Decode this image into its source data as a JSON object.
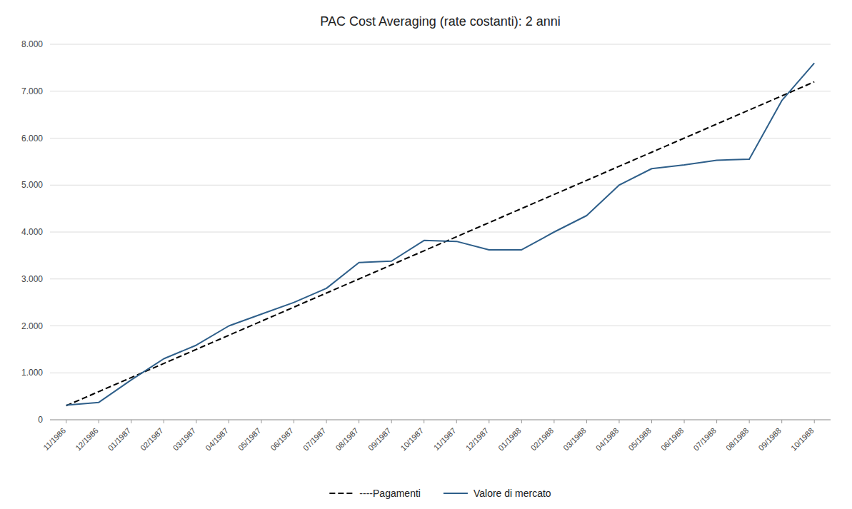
{
  "chart_data": {
    "type": "line",
    "title": "PAC Cost Averaging (rate costanti): 2 anni",
    "categories": [
      "11/1986",
      "12/1986",
      "01/1987",
      "02/1987",
      "03/1987",
      "04/1987",
      "05/1987",
      "06/1987",
      "07/1987",
      "08/1987",
      "09/1987",
      "10/1987",
      "11/1987",
      "12/1987",
      "01/1988",
      "02/1988",
      "03/1988",
      "04/1988",
      "05/1988",
      "06/1988",
      "07/1988",
      "08/1988",
      "09/1988",
      "10/1988"
    ],
    "series": [
      {
        "name": "----Pagamenti",
        "color": "#000000",
        "line_style": "dashed",
        "values": [
          300,
          600,
          900,
          1200,
          1500,
          1800,
          2100,
          2400,
          2700,
          3000,
          3300,
          3600,
          3900,
          4200,
          4500,
          4800,
          5100,
          5400,
          5700,
          6000,
          6300,
          6600,
          6900,
          7200
        ]
      },
      {
        "name": "Valore di mercato",
        "color": "#2E5F8A",
        "line_style": "solid",
        "values": [
          310,
          370,
          850,
          1300,
          1590,
          2000,
          2250,
          2500,
          2800,
          3350,
          3380,
          3820,
          3800,
          3620,
          3620,
          4000,
          4350,
          5000,
          5350,
          5430,
          5530,
          5550,
          6800,
          7600
        ]
      }
    ],
    "ylim": [
      0,
      8000
    ],
    "yticks": [
      0,
      {
        "value": 1000,
        "label": "1.000"
      },
      {
        "value": 2000,
        "label": "2.000"
      },
      {
        "value": 3000,
        "label": "3.000"
      },
      {
        "value": 4000,
        "label": "4.000"
      },
      {
        "value": 5000,
        "label": "5.000"
      },
      {
        "value": 6000,
        "label": "6.000"
      },
      {
        "value": 7000,
        "label": "7.000"
      },
      {
        "value": 8000,
        "label": "8.000"
      }
    ],
    "grid": true,
    "legend": "bottom"
  }
}
